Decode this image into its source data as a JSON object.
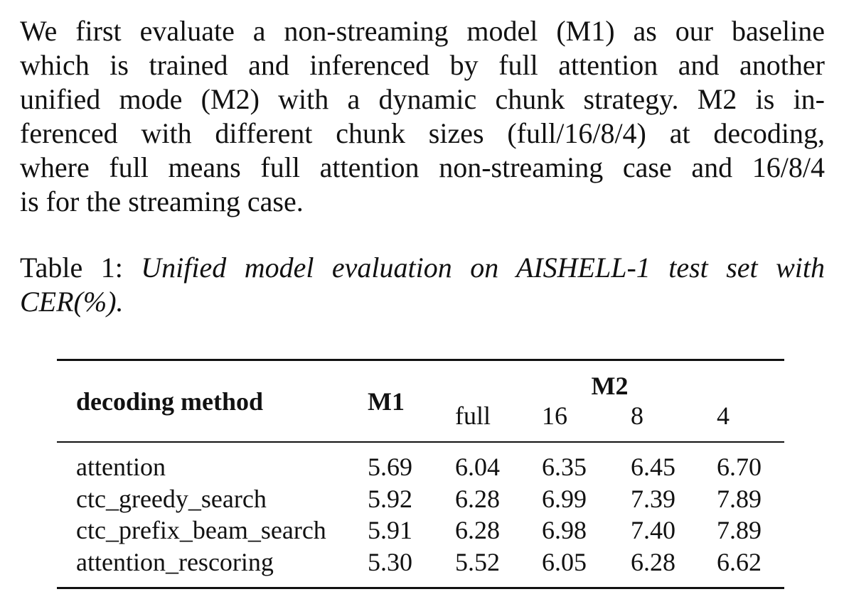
{
  "paragraph": {
    "lines": [
      "We first evaluate a non-streaming model (M1) as our baseline",
      "which is trained and inferenced by full attention and another",
      "unified mode (M2) with a dynamic chunk strategy.  M2 is in-",
      "ferenced with different chunk sizes (full/16/8/4) at decoding,",
      "where full means full attention non-streaming case and 16/8/4",
      "is for the streaming case."
    ]
  },
  "caption": {
    "label": "Table 1:",
    "lines": [
      "Unified model evaluation on AISHELL-1 test set with",
      "CER(%)."
    ]
  },
  "table": {
    "header": {
      "method": "decoding method",
      "m1": "M1",
      "m2": "M2",
      "m2_columns": [
        "full",
        "16",
        "8",
        "4"
      ]
    },
    "rows": [
      [
        "attention",
        "5.69",
        "6.04",
        "6.35",
        "6.45",
        "6.70"
      ],
      [
        "ctc_greedy_search",
        "5.92",
        "6.28",
        "6.99",
        "7.39",
        "7.89"
      ],
      [
        "ctc_prefix_beam_search",
        "5.91",
        "6.28",
        "6.98",
        "7.40",
        "7.89"
      ],
      [
        "attention_rescoring",
        "5.30",
        "5.52",
        "6.05",
        "6.28",
        "6.62"
      ]
    ]
  }
}
